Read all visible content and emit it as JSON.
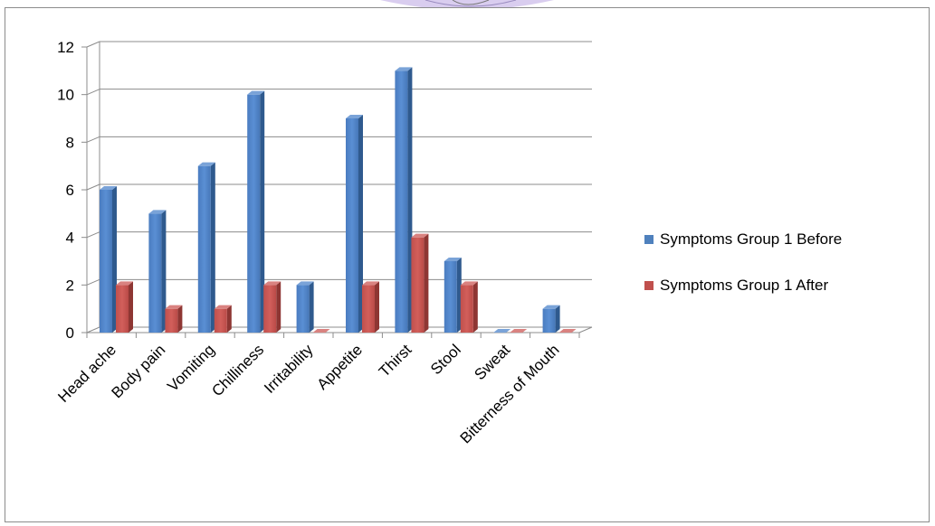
{
  "chart_data": {
    "type": "bar",
    "title": "",
    "xlabel": "",
    "ylabel": "",
    "categories": [
      "Head ache",
      "Body pain",
      "Vomiting",
      "Chilliness",
      "Irritability",
      "Appetite",
      "Thirst",
      "Stool",
      "Sweat",
      "Bitterness of Mouth"
    ],
    "series": [
      {
        "name": "Symptoms Group 1 Before",
        "values": [
          6,
          5,
          7,
          10,
          2,
          9,
          11,
          3,
          0,
          1
        ],
        "color": "#4F81BD"
      },
      {
        "name": "Symptoms Group 1 After",
        "values": [
          2,
          1,
          1,
          2,
          0,
          2,
          4,
          2,
          0,
          0
        ],
        "color": "#C0504D"
      }
    ],
    "ylim": [
      0,
      12
    ],
    "yticks": [
      0,
      2,
      4,
      6,
      8,
      10,
      12
    ],
    "grid": true,
    "legend_position": "right",
    "style": "3d-clustered-column"
  }
}
